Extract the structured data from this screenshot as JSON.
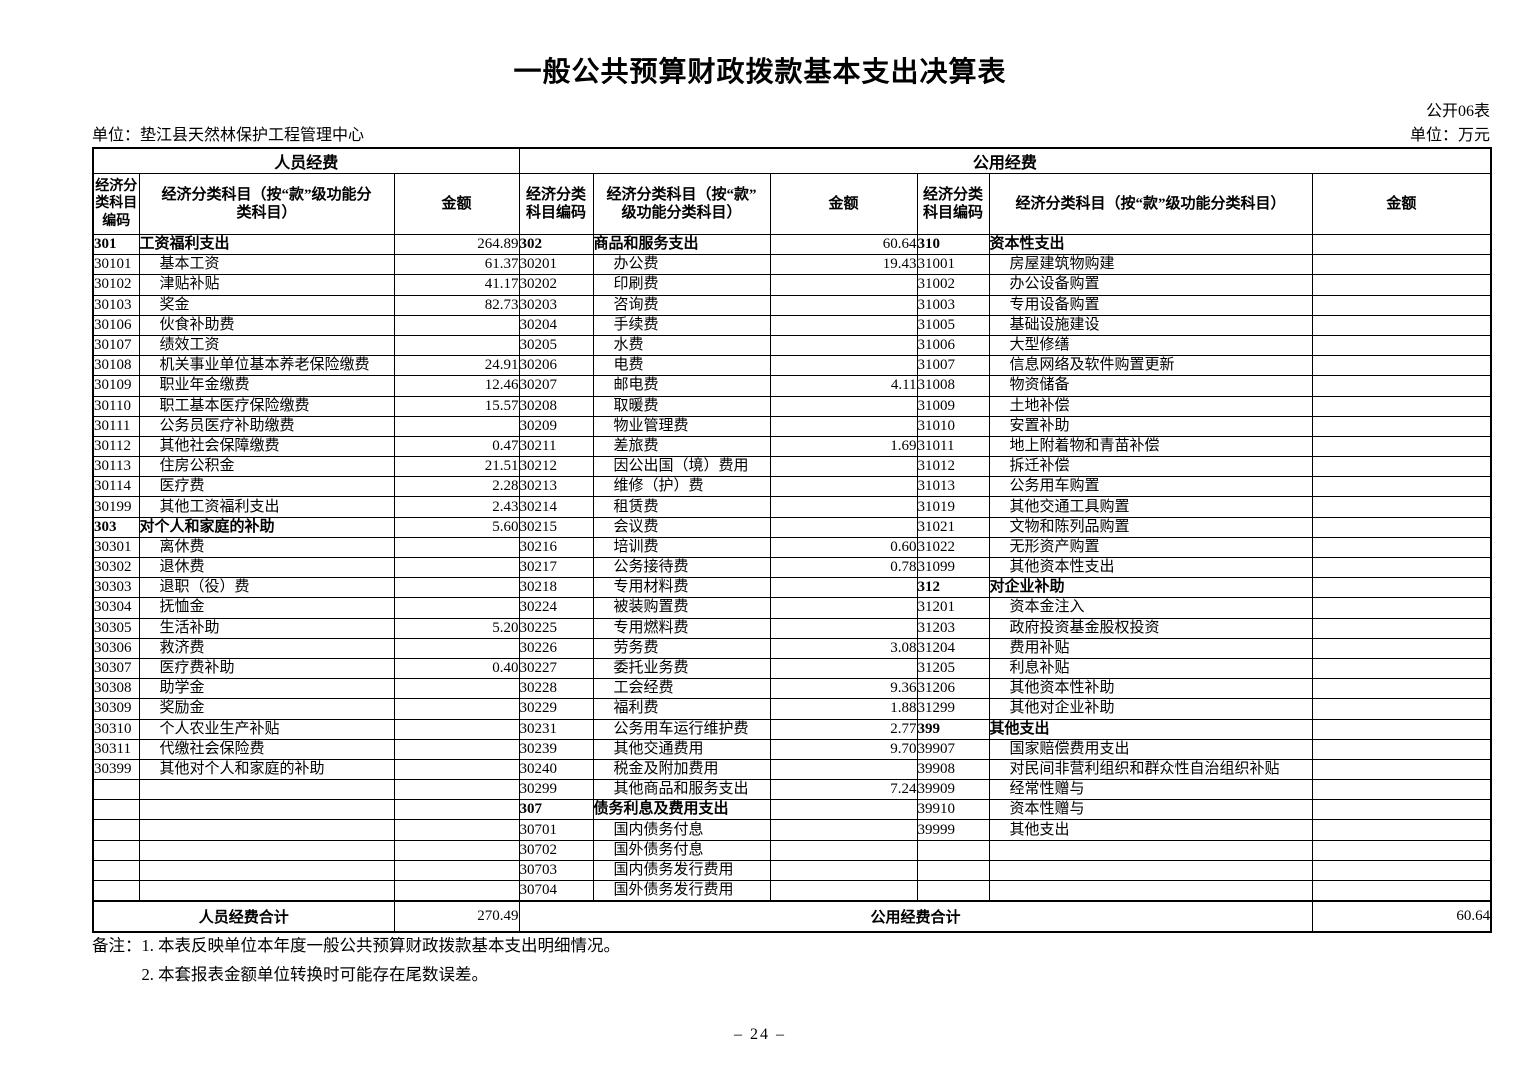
{
  "page": {
    "title": "一般公共预算财政拨款基本支出决算表",
    "table_no": "公开06表",
    "unit_left": "单位：垫江县天然林保护工程管理中心",
    "unit_right": "单位：万元",
    "page_number": "– 24 –"
  },
  "table": {
    "group_headers": [
      "人员经费",
      "公用经费"
    ],
    "columns": [
      "经济分\n类科目\n编码",
      "经济分类科目（按“款”级功能分\n类科目）",
      "金额",
      "经济分类\n科目编码",
      "经济分类科目（按“款”\n级功能分类科目）",
      "金额",
      "经济分类\n科目编码",
      "经济分类科目（按“款”级功能分类科目）",
      "金额"
    ],
    "sections": {
      "personnel": [
        {
          "c": "301",
          "n": "工资福利支出",
          "v": "264.89",
          "b": 1
        },
        {
          "c": "30101",
          "n": "基本工资",
          "v": "61.37"
        },
        {
          "c": "30102",
          "n": "津贴补贴",
          "v": "41.17"
        },
        {
          "c": "30103",
          "n": "奖金",
          "v": "82.73"
        },
        {
          "c": "30106",
          "n": "伙食补助费",
          "v": ""
        },
        {
          "c": "30107",
          "n": "绩效工资",
          "v": ""
        },
        {
          "c": "30108",
          "n": "机关事业单位基本养老保险缴费",
          "v": "24.91"
        },
        {
          "c": "30109",
          "n": "职业年金缴费",
          "v": "12.46"
        },
        {
          "c": "30110",
          "n": "职工基本医疗保险缴费",
          "v": "15.57"
        },
        {
          "c": "30111",
          "n": "公务员医疗补助缴费",
          "v": ""
        },
        {
          "c": "30112",
          "n": "其他社会保障缴费",
          "v": "0.47"
        },
        {
          "c": "30113",
          "n": "住房公积金",
          "v": "21.51"
        },
        {
          "c": "30114",
          "n": "医疗费",
          "v": "2.28"
        },
        {
          "c": "30199",
          "n": "其他工资福利支出",
          "v": "2.43"
        },
        {
          "c": "303",
          "n": "对个人和家庭的补助",
          "v": "5.60",
          "b": 1
        },
        {
          "c": "30301",
          "n": "离休费",
          "v": ""
        },
        {
          "c": "30302",
          "n": "退休费",
          "v": ""
        },
        {
          "c": "30303",
          "n": "退职（役）费",
          "v": ""
        },
        {
          "c": "30304",
          "n": "抚恤金",
          "v": ""
        },
        {
          "c": "30305",
          "n": "生活补助",
          "v": "5.20"
        },
        {
          "c": "30306",
          "n": "救济费",
          "v": ""
        },
        {
          "c": "30307",
          "n": "医疗费补助",
          "v": "0.40"
        },
        {
          "c": "30308",
          "n": "助学金",
          "v": ""
        },
        {
          "c": "30309",
          "n": "奖励金",
          "v": ""
        },
        {
          "c": "30310",
          "n": "个人农业生产补贴",
          "v": ""
        },
        {
          "c": "30311",
          "n": "代缴社会保险费",
          "v": ""
        },
        {
          "c": "30399",
          "n": "其他对个人和家庭的补助",
          "v": ""
        },
        {},
        {},
        {},
        {},
        {},
        {}
      ],
      "public_a": [
        {
          "c": "302",
          "n": "商品和服务支出",
          "v": "60.64",
          "b": 1
        },
        {
          "c": "30201",
          "n": "办公费",
          "v": "19.43"
        },
        {
          "c": "30202",
          "n": "印刷费",
          "v": ""
        },
        {
          "c": "30203",
          "n": "咨询费",
          "v": ""
        },
        {
          "c": "30204",
          "n": "手续费",
          "v": ""
        },
        {
          "c": "30205",
          "n": "水费",
          "v": ""
        },
        {
          "c": "30206",
          "n": "电费",
          "v": ""
        },
        {
          "c": "30207",
          "n": "邮电费",
          "v": "4.11"
        },
        {
          "c": "30208",
          "n": "取暖费",
          "v": ""
        },
        {
          "c": "30209",
          "n": "物业管理费",
          "v": ""
        },
        {
          "c": "30211",
          "n": "差旅费",
          "v": "1.69"
        },
        {
          "c": "30212",
          "n": "因公出国（境）费用",
          "v": ""
        },
        {
          "c": "30213",
          "n": "维修（护）费",
          "v": ""
        },
        {
          "c": "30214",
          "n": "租赁费",
          "v": ""
        },
        {
          "c": "30215",
          "n": "会议费",
          "v": ""
        },
        {
          "c": "30216",
          "n": "培训费",
          "v": "0.60"
        },
        {
          "c": "30217",
          "n": "公务接待费",
          "v": "0.78"
        },
        {
          "c": "30218",
          "n": "专用材料费",
          "v": ""
        },
        {
          "c": "30224",
          "n": "被装购置费",
          "v": ""
        },
        {
          "c": "30225",
          "n": "专用燃料费",
          "v": ""
        },
        {
          "c": "30226",
          "n": "劳务费",
          "v": "3.08"
        },
        {
          "c": "30227",
          "n": "委托业务费",
          "v": ""
        },
        {
          "c": "30228",
          "n": "工会经费",
          "v": "9.36"
        },
        {
          "c": "30229",
          "n": "福利费",
          "v": "1.88"
        },
        {
          "c": "30231",
          "n": "公务用车运行维护费",
          "v": "2.77"
        },
        {
          "c": "30239",
          "n": "其他交通费用",
          "v": "9.70"
        },
        {
          "c": "30240",
          "n": "税金及附加费用",
          "v": ""
        },
        {
          "c": "30299",
          "n": "其他商品和服务支出",
          "v": "7.24"
        },
        {
          "c": "307",
          "n": "债务利息及费用支出",
          "v": "",
          "b": 1
        },
        {
          "c": "30701",
          "n": "国内债务付息",
          "v": ""
        },
        {
          "c": "30702",
          "n": "国外债务付息",
          "v": ""
        },
        {
          "c": "30703",
          "n": "国内债务发行费用",
          "v": ""
        },
        {
          "c": "30704",
          "n": "国外债务发行费用",
          "v": ""
        }
      ],
      "public_b": [
        {
          "c": "310",
          "n": "资本性支出",
          "v": "",
          "b": 1
        },
        {
          "c": "31001",
          "n": "房屋建筑物购建",
          "v": ""
        },
        {
          "c": "31002",
          "n": "办公设备购置",
          "v": ""
        },
        {
          "c": "31003",
          "n": "专用设备购置",
          "v": ""
        },
        {
          "c": "31005",
          "n": "基础设施建设",
          "v": ""
        },
        {
          "c": "31006",
          "n": "大型修缮",
          "v": ""
        },
        {
          "c": "31007",
          "n": "信息网络及软件购置更新",
          "v": ""
        },
        {
          "c": "31008",
          "n": "物资储备",
          "v": ""
        },
        {
          "c": "31009",
          "n": "土地补偿",
          "v": ""
        },
        {
          "c": "31010",
          "n": "安置补助",
          "v": ""
        },
        {
          "c": "31011",
          "n": "地上附着物和青苗补偿",
          "v": ""
        },
        {
          "c": "31012",
          "n": "拆迁补偿",
          "v": ""
        },
        {
          "c": "31013",
          "n": "公务用车购置",
          "v": ""
        },
        {
          "c": "31019",
          "n": "其他交通工具购置",
          "v": ""
        },
        {
          "c": "31021",
          "n": "文物和陈列品购置",
          "v": ""
        },
        {
          "c": "31022",
          "n": "无形资产购置",
          "v": ""
        },
        {
          "c": "31099",
          "n": "其他资本性支出",
          "v": ""
        },
        {
          "c": "312",
          "n": "对企业补助",
          "v": "",
          "b": 1
        },
        {
          "c": "31201",
          "n": "资本金注入",
          "v": ""
        },
        {
          "c": "31203",
          "n": "政府投资基金股权投资",
          "v": ""
        },
        {
          "c": "31204",
          "n": "费用补贴",
          "v": ""
        },
        {
          "c": "31205",
          "n": "利息补贴",
          "v": ""
        },
        {
          "c": "31206",
          "n": "其他资本性补助",
          "v": ""
        },
        {
          "c": "31299",
          "n": "其他对企业补助",
          "v": ""
        },
        {
          "c": "399",
          "n": "其他支出",
          "v": "",
          "b": 1
        },
        {
          "c": "39907",
          "n": "国家赔偿费用支出",
          "v": ""
        },
        {
          "c": "39908",
          "n": "对民间非营利组织和群众性自治组织补贴",
          "v": ""
        },
        {
          "c": "39909",
          "n": "经常性赠与",
          "v": ""
        },
        {
          "c": "39910",
          "n": "资本性赠与",
          "v": ""
        },
        {
          "c": "39999",
          "n": "其他支出",
          "v": ""
        },
        {},
        {},
        {}
      ]
    },
    "totals": {
      "personnel_label": "人员经费合计",
      "personnel_amount": "270.49",
      "public_label": "公用经费合计",
      "public_amount": "60.64"
    }
  },
  "notes": {
    "label": "备注：",
    "items": [
      "1. 本表反映单位本年度一般公共预算财政拨款基本支出明细情况。",
      "2. 本套报表金额单位转换时可能存在尾数误差。"
    ]
  }
}
